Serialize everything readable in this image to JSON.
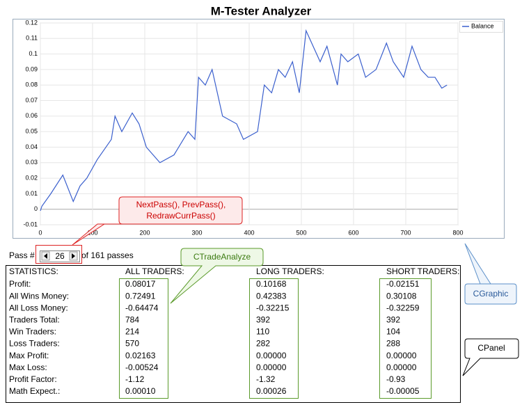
{
  "chart_data": {
    "type": "line",
    "title": "M-Tester Analyzer",
    "x": [
      0,
      3,
      20,
      43,
      63,
      76,
      89,
      109,
      136,
      143,
      156,
      176,
      189,
      203,
      229,
      256,
      283,
      296,
      303,
      316,
      329,
      349,
      376,
      389,
      416,
      429,
      443,
      456,
      469,
      483,
      496,
      509,
      536,
      549,
      569,
      576,
      589,
      609,
      623,
      643,
      663,
      676,
      696,
      712,
      729,
      743,
      756,
      769,
      779
    ],
    "series": [
      {
        "name": "Balance",
        "color": "#3a5fcd",
        "values": [
          -0.001,
          0.002,
          0.01,
          0.022,
          0.005,
          0.015,
          0.02,
          0.032,
          0.045,
          0.06,
          0.05,
          0.062,
          0.055,
          0.04,
          0.03,
          0.035,
          0.05,
          0.045,
          0.085,
          0.08,
          0.09,
          0.06,
          0.055,
          0.045,
          0.05,
          0.08,
          0.075,
          0.09,
          0.085,
          0.095,
          0.075,
          0.115,
          0.095,
          0.105,
          0.08,
          0.1,
          0.095,
          0.1,
          0.085,
          0.09,
          0.107,
          0.095,
          0.085,
          0.105,
          0.09,
          0.085,
          0.085,
          0.078,
          0.08
        ]
      }
    ],
    "xlim": [
      0,
      800
    ],
    "xticks": [
      0,
      100,
      200,
      300,
      400,
      500,
      600,
      700,
      800
    ],
    "ylim": [
      -0.01,
      0.12
    ],
    "yticks": [
      -0.01,
      0,
      0.01,
      0.02,
      0.03,
      0.04,
      0.05,
      0.06,
      0.07,
      0.08,
      0.09,
      0.1,
      0.11,
      0.12
    ],
    "grid": true,
    "legend": "top-right"
  },
  "panel": {
    "pass_label": "Pass #",
    "pass_number": 26,
    "pass_total": "of 161 passes",
    "table": {
      "header": [
        "STATISTICS:",
        "ALL TRADERS:",
        "LONG TRADERS:",
        "SHORT TRADERS:"
      ],
      "rows": [
        [
          "Profit:",
          "0.08017",
          "0.10168",
          "-0.02151"
        ],
        [
          "All Wins Money:",
          "0.72491",
          "0.42383",
          "0.30108"
        ],
        [
          "All Loss Money:",
          "-0.64474",
          "-0.32215",
          "-0.32259"
        ],
        [
          "Traders Total:",
          "784",
          "392",
          "392"
        ],
        [
          "Win Traders:",
          "214",
          "110",
          "104"
        ],
        [
          "Loss Traders:",
          "570",
          "282",
          "288"
        ],
        [
          "Max Profit:",
          "0.02163",
          "0.00000",
          "0.00000"
        ],
        [
          "Max Loss:",
          "-0.00524",
          "0.00000",
          "0.00000"
        ],
        [
          "Profit Factor:",
          "-1.12",
          "-1.32",
          "-0.93"
        ],
        [
          "Math Expect.:",
          "0.00010",
          "0.00026",
          "-0.00005"
        ]
      ]
    }
  },
  "callouts": {
    "methods": [
      "NextPass(), PrevPass(),",
      "RedrawCurrPass()"
    ],
    "trade_analyze": "CTradeAnalyze",
    "graphic": "CGraphic",
    "panel": "CPanel"
  }
}
